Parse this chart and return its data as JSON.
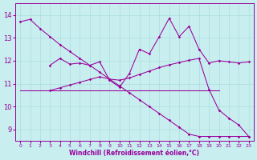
{
  "bg_color": "#c8eef0",
  "line_color": "#990099",
  "grid_color": "#aadddd",
  "xlabel": "Windchill (Refroidissement éolien,°C)",
  "xlabel_color": "#990099",
  "tick_color": "#990099",
  "ylim": [
    8.5,
    14.5
  ],
  "xlim": [
    -0.5,
    23.5
  ],
  "yticks": [
    9,
    10,
    11,
    12,
    13,
    14
  ],
  "xticks": [
    0,
    1,
    2,
    3,
    4,
    5,
    6,
    7,
    8,
    9,
    10,
    11,
    12,
    13,
    14,
    15,
    16,
    17,
    18,
    19,
    20,
    21,
    22,
    23
  ],
  "line1_x": [
    0,
    1,
    2,
    3,
    4,
    5,
    6,
    7,
    8,
    9,
    10,
    11,
    12,
    13,
    14,
    15,
    16,
    17,
    18,
    19,
    20,
    21,
    22,
    23
  ],
  "line1_y": [
    13.7,
    13.8,
    13.4,
    13.05,
    12.7,
    12.4,
    12.1,
    11.8,
    11.5,
    11.2,
    10.9,
    10.6,
    10.3,
    10.0,
    9.7,
    9.4,
    9.1,
    8.8,
    8.7,
    8.7,
    8.7,
    8.7,
    8.7,
    8.7
  ],
  "line2_x": [
    0,
    1,
    2,
    3,
    4,
    5,
    6,
    7,
    8,
    9,
    10,
    11,
    12,
    13,
    14,
    15,
    16,
    17,
    18,
    19,
    20
  ],
  "line2_y": [
    10.7,
    10.7,
    10.7,
    10.7,
    10.7,
    10.7,
    10.7,
    10.7,
    10.7,
    10.7,
    10.7,
    10.7,
    10.7,
    10.7,
    10.7,
    10.7,
    10.7,
    10.7,
    10.7,
    10.7,
    10.7
  ],
  "line3_x": [
    3,
    4,
    5,
    6,
    7,
    8,
    9,
    10,
    11,
    12,
    13,
    14,
    15,
    16,
    17,
    18,
    19,
    20,
    21,
    22,
    23
  ],
  "line3_y": [
    11.8,
    12.1,
    11.85,
    11.9,
    11.8,
    11.95,
    11.15,
    10.85,
    11.45,
    12.5,
    12.3,
    13.05,
    13.85,
    13.05,
    13.5,
    12.5,
    11.9,
    12.0,
    11.95,
    11.9,
    11.95
  ],
  "line4_x": [
    3,
    4,
    5,
    6,
    7,
    8,
    9,
    10,
    11,
    12,
    13,
    14,
    15,
    16,
    17,
    18,
    19,
    20,
    21,
    22,
    23
  ],
  "line4_y": [
    10.7,
    10.82,
    10.94,
    11.06,
    11.18,
    11.3,
    11.2,
    11.15,
    11.25,
    11.4,
    11.55,
    11.7,
    11.82,
    11.92,
    12.02,
    12.1,
    10.75,
    9.85,
    9.5,
    9.2,
    8.7
  ]
}
